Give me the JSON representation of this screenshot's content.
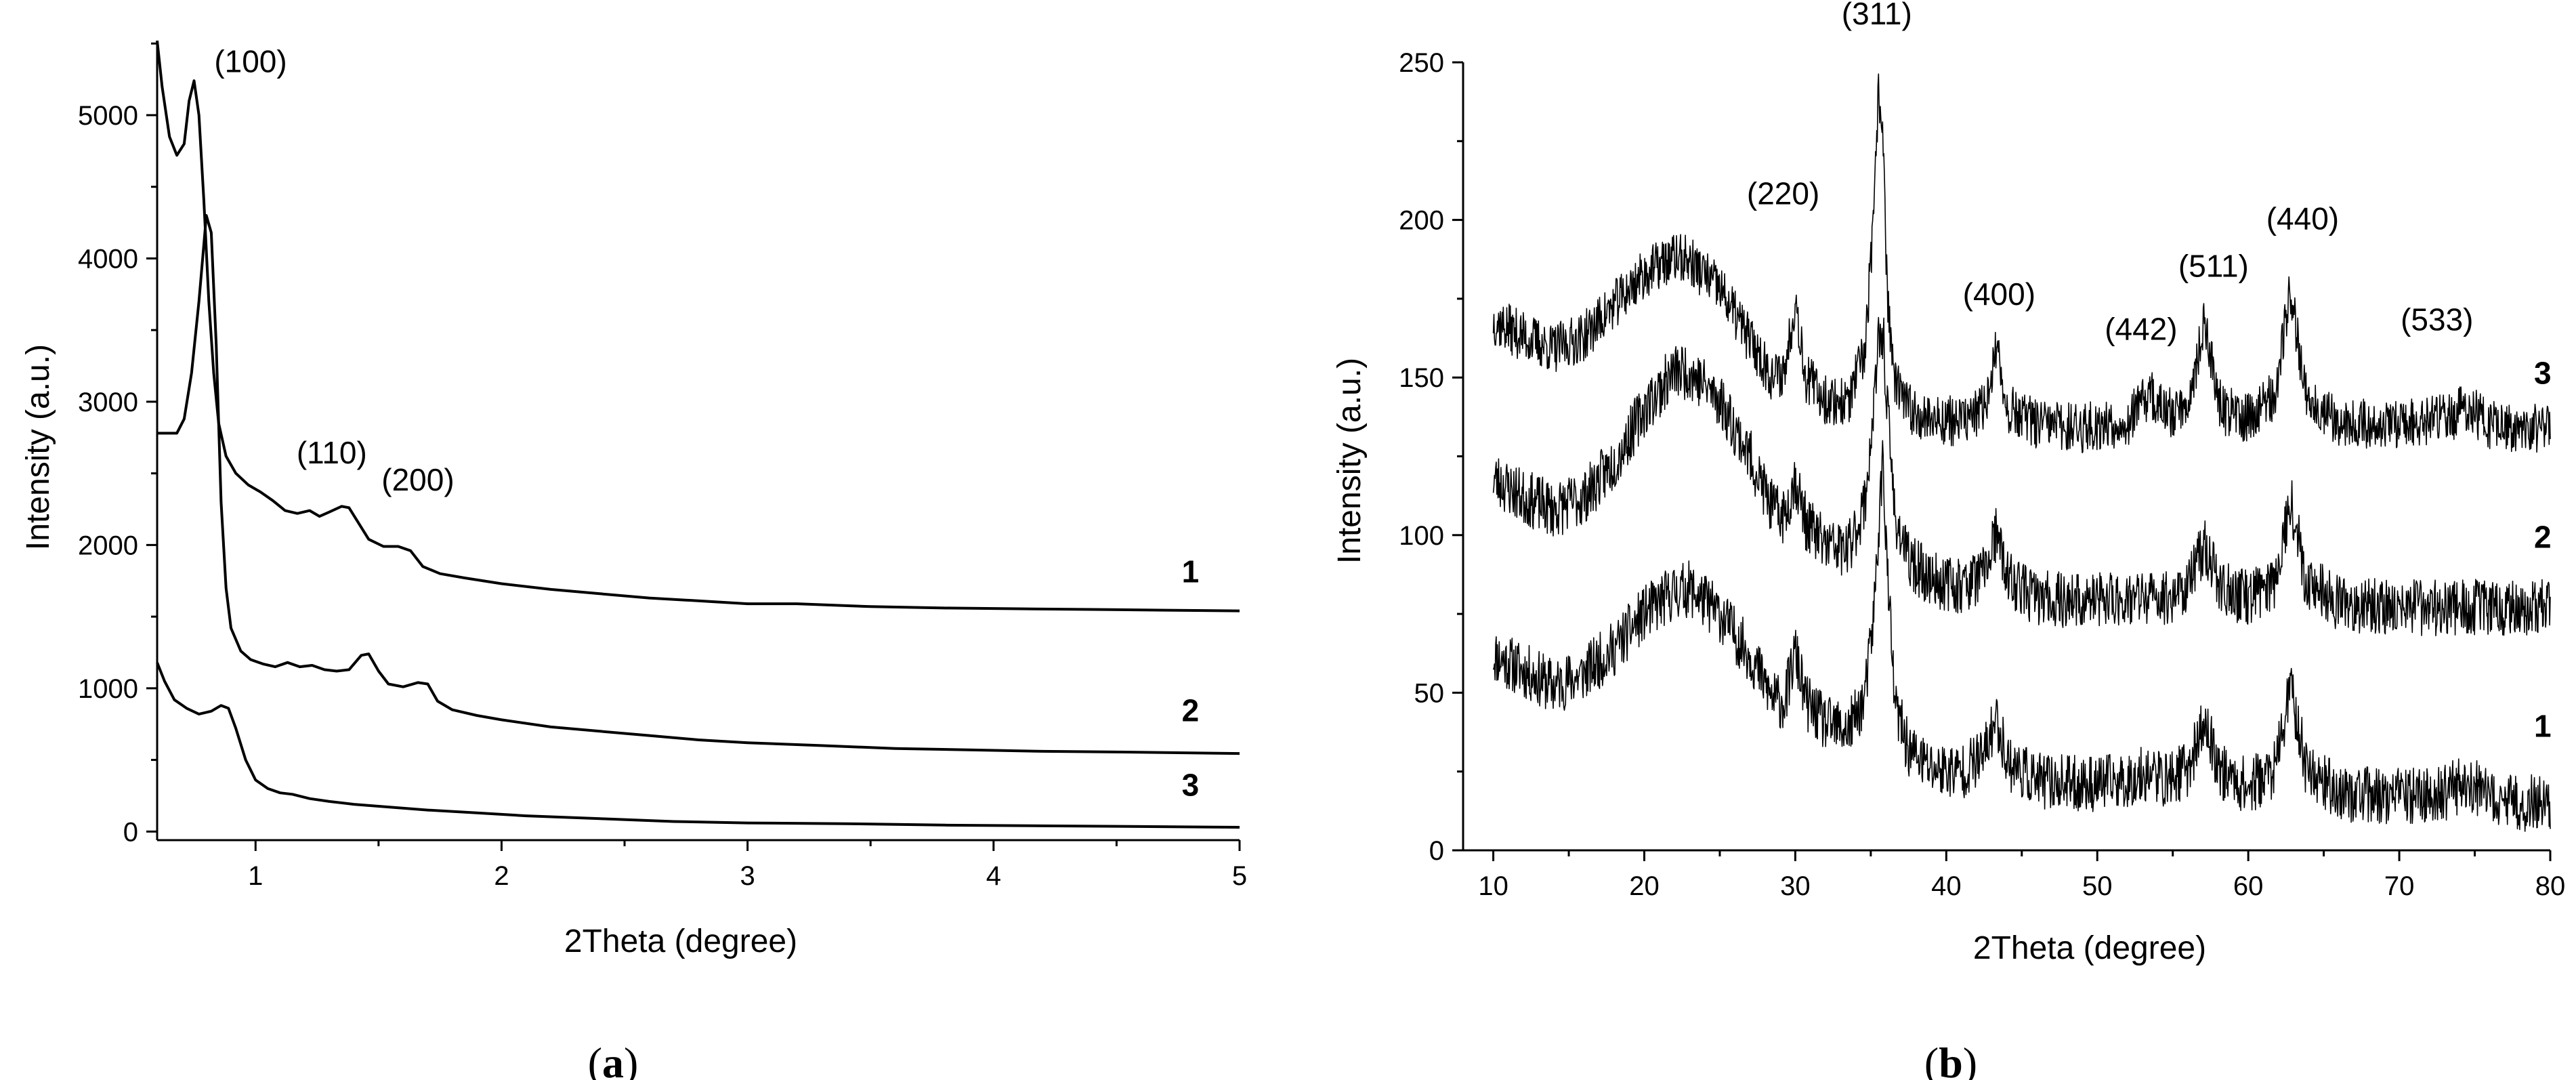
{
  "chart_data": [
    {
      "type": "line",
      "panel": "(a)",
      "panel_letter": "a",
      "xlabel": "2Theta (degree)",
      "ylabel": "Intensity (a.u.)",
      "xlim": [
        0.6,
        5
      ],
      "ylim": [
        -60,
        5520
      ],
      "xticks": [
        1,
        2,
        3,
        4,
        5
      ],
      "yticks": [
        0,
        1000,
        2000,
        3000,
        4000,
        5000
      ],
      "grid": false,
      "peak_annotations": [
        {
          "text": "(100)",
          "x": 0.98,
          "y": 5300
        },
        {
          "text": "(110)",
          "x": 1.31,
          "y": 2570
        },
        {
          "text": "(200)",
          "x": 1.66,
          "y": 2380
        }
      ],
      "series": [
        {
          "name": "1",
          "label_at": [
            4.8,
            1740
          ],
          "points": [
            [
              0.6,
              5520
            ],
            [
              0.62,
              5200
            ],
            [
              0.65,
              4850
            ],
            [
              0.68,
              4720
            ],
            [
              0.71,
              4800
            ],
            [
              0.73,
              5100
            ],
            [
              0.75,
              5240
            ],
            [
              0.77,
              5000
            ],
            [
              0.79,
              4400
            ],
            [
              0.81,
              3700
            ],
            [
              0.83,
              3200
            ],
            [
              0.85,
              2850
            ],
            [
              0.88,
              2620
            ],
            [
              0.92,
              2500
            ],
            [
              0.97,
              2420
            ],
            [
              1.02,
              2370
            ],
            [
              1.07,
              2310
            ],
            [
              1.12,
              2240
            ],
            [
              1.17,
              2220
            ],
            [
              1.22,
              2240
            ],
            [
              1.26,
              2200
            ],
            [
              1.3,
              2230
            ],
            [
              1.35,
              2270
            ],
            [
              1.38,
              2260
            ],
            [
              1.42,
              2150
            ],
            [
              1.46,
              2040
            ],
            [
              1.52,
              1990
            ],
            [
              1.58,
              1990
            ],
            [
              1.63,
              1960
            ],
            [
              1.68,
              1850
            ],
            [
              1.75,
              1800
            ],
            [
              1.85,
              1770
            ],
            [
              2.0,
              1730
            ],
            [
              2.2,
              1690
            ],
            [
              2.4,
              1660
            ],
            [
              2.6,
              1630
            ],
            [
              2.8,
              1610
            ],
            [
              3.0,
              1590
            ],
            [
              3.2,
              1590
            ],
            [
              3.5,
              1570
            ],
            [
              3.8,
              1560
            ],
            [
              4.1,
              1555
            ],
            [
              4.4,
              1550
            ],
            [
              4.7,
              1545
            ],
            [
              5.0,
              1540
            ]
          ]
        },
        {
          "name": "2",
          "label_at": [
            4.8,
            770
          ],
          "points": [
            [
              0.6,
              2780
            ],
            [
              0.68,
              2780
            ],
            [
              0.71,
              2880
            ],
            [
              0.74,
              3200
            ],
            [
              0.77,
              3700
            ],
            [
              0.79,
              4100
            ],
            [
              0.8,
              4300
            ],
            [
              0.82,
              4180
            ],
            [
              0.84,
              3400
            ],
            [
              0.86,
              2300
            ],
            [
              0.88,
              1700
            ],
            [
              0.9,
              1420
            ],
            [
              0.94,
              1260
            ],
            [
              0.98,
              1200
            ],
            [
              1.03,
              1170
            ],
            [
              1.08,
              1150
            ],
            [
              1.13,
              1180
            ],
            [
              1.18,
              1150
            ],
            [
              1.23,
              1160
            ],
            [
              1.28,
              1130
            ],
            [
              1.33,
              1120
            ],
            [
              1.38,
              1130
            ],
            [
              1.43,
              1230
            ],
            [
              1.46,
              1240
            ],
            [
              1.5,
              1120
            ],
            [
              1.54,
              1030
            ],
            [
              1.6,
              1010
            ],
            [
              1.66,
              1040
            ],
            [
              1.7,
              1030
            ],
            [
              1.74,
              910
            ],
            [
              1.8,
              850
            ],
            [
              1.9,
              810
            ],
            [
              2.0,
              780
            ],
            [
              2.2,
              730
            ],
            [
              2.4,
              700
            ],
            [
              2.6,
              670
            ],
            [
              2.8,
              640
            ],
            [
              3.0,
              620
            ],
            [
              3.3,
              600
            ],
            [
              3.6,
              580
            ],
            [
              3.9,
              570
            ],
            [
              4.2,
              560
            ],
            [
              4.5,
              555
            ],
            [
              5.0,
              545
            ]
          ]
        },
        {
          "name": "3",
          "label_at": [
            4.8,
            250
          ],
          "points": [
            [
              0.6,
              1180
            ],
            [
              0.63,
              1050
            ],
            [
              0.67,
              920
            ],
            [
              0.72,
              860
            ],
            [
              0.77,
              820
            ],
            [
              0.82,
              840
            ],
            [
              0.86,
              880
            ],
            [
              0.89,
              860
            ],
            [
              0.92,
              720
            ],
            [
              0.96,
              500
            ],
            [
              1.0,
              360
            ],
            [
              1.05,
              300
            ],
            [
              1.1,
              270
            ],
            [
              1.15,
              260
            ],
            [
              1.22,
              230
            ],
            [
              1.3,
              210
            ],
            [
              1.4,
              190
            ],
            [
              1.55,
              170
            ],
            [
              1.7,
              150
            ],
            [
              1.9,
              130
            ],
            [
              2.1,
              110
            ],
            [
              2.4,
              90
            ],
            [
              2.7,
              70
            ],
            [
              3.0,
              60
            ],
            [
              3.4,
              55
            ],
            [
              3.8,
              45
            ],
            [
              4.2,
              40
            ],
            [
              4.6,
              35
            ],
            [
              5.0,
              30
            ]
          ]
        }
      ]
    },
    {
      "type": "line",
      "panel": "(b)",
      "panel_letter": "b",
      "xlabel": "2Theta (degree)",
      "ylabel": "Intensity (a.u.)",
      "xlim": [
        8,
        80
      ],
      "ylim": [
        0,
        250
      ],
      "xticks": [
        10,
        20,
        30,
        40,
        50,
        60,
        70,
        80
      ],
      "yticks": [
        0,
        50,
        100,
        150,
        200,
        250
      ],
      "grid": false,
      "peak_annotations": [
        {
          "text": "(311)",
          "x": 35.4,
          "y": 262
        },
        {
          "text": "(220)",
          "x": 29.2,
          "y": 205
        },
        {
          "text": "(400)",
          "x": 43.5,
          "y": 173
        },
        {
          "text": "(442)",
          "x": 52.9,
          "y": 162
        },
        {
          "text": "(511)",
          "x": 57.7,
          "y": 182
        },
        {
          "text": "(440)",
          "x": 63.6,
          "y": 197
        },
        {
          "text": "(533)",
          "x": 72.5,
          "y": 165
        }
      ],
      "series": [
        {
          "name": "1",
          "label_at": [
            79.5,
            36
          ],
          "noise": 9,
          "seed": 11,
          "points": [
            [
              10,
              62
            ],
            [
              12,
              57
            ],
            [
              14,
              52
            ],
            [
              16,
              56
            ],
            [
              18,
              64
            ],
            [
              20,
              75
            ],
            [
              22,
              82
            ],
            [
              23,
              83
            ],
            [
              25,
              75
            ],
            [
              27,
              62
            ],
            [
              28.5,
              48
            ],
            [
              29.3,
              47
            ],
            [
              30,
              63
            ],
            [
              30.7,
              47
            ],
            [
              32,
              40
            ],
            [
              33.5,
              38
            ],
            [
              34.6,
              48
            ],
            [
              35.2,
              75
            ],
            [
              35.5,
              100
            ],
            [
              35.8,
              125
            ],
            [
              36.1,
              88
            ],
            [
              36.6,
              46
            ],
            [
              37.5,
              32
            ],
            [
              39,
              26
            ],
            [
              41,
              25
            ],
            [
              42.5,
              30
            ],
            [
              43.3,
              42
            ],
            [
              44.1,
              28
            ],
            [
              46,
              22
            ],
            [
              49,
              21
            ],
            [
              52,
              22
            ],
            [
              53.5,
              25
            ],
            [
              54.5,
              22
            ],
            [
              56,
              26
            ],
            [
              57.1,
              40
            ],
            [
              58.2,
              25
            ],
            [
              60,
              20
            ],
            [
              61.8,
              26
            ],
            [
              62.8,
              52
            ],
            [
              63.8,
              27
            ],
            [
              66,
              18
            ],
            [
              70,
              17
            ],
            [
              73,
              18
            ],
            [
              74.5,
              22
            ],
            [
              76,
              16
            ],
            [
              78,
              15
            ],
            [
              80,
              15
            ]
          ]
        },
        {
          "name": "2",
          "label_at": [
            79.5,
            96
          ],
          "noise": 9,
          "seed": 23,
          "points": [
            [
              10,
              118
            ],
            [
              12,
              112
            ],
            [
              14,
              108
            ],
            [
              16,
              112
            ],
            [
              18,
              123
            ],
            [
              20,
              140
            ],
            [
              22,
              152
            ],
            [
              23,
              152
            ],
            [
              25,
              143
            ],
            [
              27,
              125
            ],
            [
              28.5,
              108
            ],
            [
              29.3,
              106
            ],
            [
              30,
              118
            ],
            [
              30.7,
              104
            ],
            [
              32,
              97
            ],
            [
              33.5,
              95
            ],
            [
              34.6,
              110
            ],
            [
              35.2,
              140
            ],
            [
              35.5,
              160
            ],
            [
              35.8,
              165
            ],
            [
              36.1,
              140
            ],
            [
              36.6,
              106
            ],
            [
              37.5,
              92
            ],
            [
              39,
              86
            ],
            [
              41,
              84
            ],
            [
              42.5,
              88
            ],
            [
              43.3,
              100
            ],
            [
              44.1,
              86
            ],
            [
              46,
              80
            ],
            [
              49,
              79
            ],
            [
              52,
              80
            ],
            [
              54.5,
              80
            ],
            [
              56,
              84
            ],
            [
              57.1,
              97
            ],
            [
              58.2,
              83
            ],
            [
              60,
              80
            ],
            [
              61.8,
              86
            ],
            [
              62.8,
              112
            ],
            [
              63.8,
              86
            ],
            [
              66,
              78
            ],
            [
              70,
              77
            ],
            [
              74,
              77
            ],
            [
              78,
              77
            ],
            [
              80,
              77
            ]
          ]
        },
        {
          "name": "3",
          "label_at": [
            79.5,
            148
          ],
          "noise": 8,
          "seed": 37,
          "points": [
            [
              10,
              168
            ],
            [
              12,
              163
            ],
            [
              14,
              159
            ],
            [
              16,
              163
            ],
            [
              18,
              173
            ],
            [
              20,
              183
            ],
            [
              22,
              188
            ],
            [
              23,
              187
            ],
            [
              25,
              178
            ],
            [
              27,
              162
            ],
            [
              28.5,
              150
            ],
            [
              29.3,
              152
            ],
            [
              30,
              175
            ],
            [
              30.7,
              150
            ],
            [
              32,
              143
            ],
            [
              33.5,
              142
            ],
            [
              34.6,
              158
            ],
            [
              35.2,
              200
            ],
            [
              35.5,
              240
            ],
            [
              35.8,
              230
            ],
            [
              36.1,
              175
            ],
            [
              36.6,
              148
            ],
            [
              37.5,
              140
            ],
            [
              39,
              137
            ],
            [
              41,
              136
            ],
            [
              42.5,
              140
            ],
            [
              43.3,
              158
            ],
            [
              44.1,
              140
            ],
            [
              46,
              135
            ],
            [
              49,
              134
            ],
            [
              52,
              136
            ],
            [
              53.5,
              145
            ],
            [
              54.5,
              138
            ],
            [
              56,
              142
            ],
            [
              57.1,
              167
            ],
            [
              58.2,
              140
            ],
            [
              60,
              137
            ],
            [
              61.8,
              145
            ],
            [
              62.8,
              178
            ],
            [
              63.8,
              145
            ],
            [
              66,
              136
            ],
            [
              70,
              135
            ],
            [
              73,
              137
            ],
            [
              74.5,
              140
            ],
            [
              76,
              135
            ],
            [
              78,
              134
            ],
            [
              80,
              134
            ]
          ]
        }
      ]
    }
  ]
}
